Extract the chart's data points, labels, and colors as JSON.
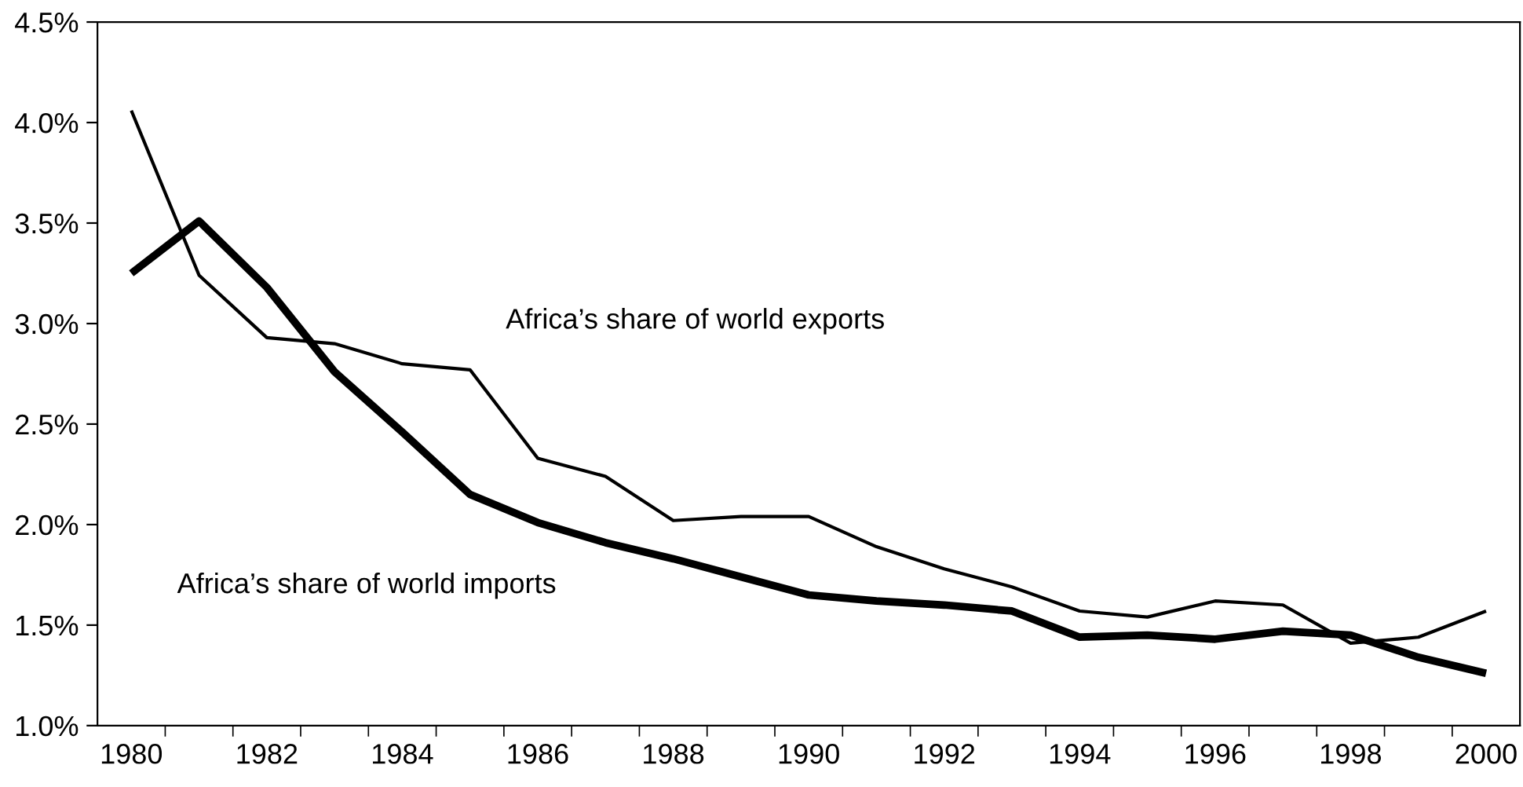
{
  "chart_data": {
    "type": "line",
    "categories": [
      "1980",
      null,
      "1982",
      null,
      "1984",
      null,
      "1986",
      null,
      "1988",
      null,
      "1990",
      null,
      "1992",
      null,
      "1994",
      null,
      "1996",
      null,
      "1998",
      null,
      "2000"
    ],
    "series": [
      {
        "name": "Africa’s share of world exports",
        "color": "#000000",
        "values": [
          4.06,
          3.24,
          2.93,
          2.9,
          2.8,
          2.77,
          2.33,
          2.24,
          2.02,
          2.04,
          2.04,
          1.89,
          1.78,
          1.69,
          1.57,
          1.54,
          1.62,
          1.6,
          1.41,
          1.44,
          1.57
        ]
      },
      {
        "name": "Africa’s share of world imports",
        "color": "#000000",
        "values": [
          3.25,
          3.51,
          3.18,
          2.76,
          2.46,
          2.15,
          2.01,
          1.91,
          1.83,
          1.74,
          1.65,
          1.62,
          1.6,
          1.57,
          1.44,
          1.45,
          1.43,
          1.47,
          1.45,
          1.34,
          1.26
        ]
      }
    ],
    "ylim": [
      1.0,
      4.5
    ],
    "yticks": [
      {
        "value": 1.0,
        "label": "1.0%"
      },
      {
        "value": 1.5,
        "label": "1.5%"
      },
      {
        "value": 2.0,
        "label": "2.0%"
      },
      {
        "value": 2.5,
        "label": "2.5%"
      },
      {
        "value": 3.0,
        "label": "3.0%"
      },
      {
        "value": 3.5,
        "label": "3.5%"
      },
      {
        "value": 4.0,
        "label": "4.0%"
      },
      {
        "value": 4.5,
        "label": "4.5%"
      }
    ],
    "line_style": "solid",
    "marker": "none",
    "grid": false,
    "legend": false
  }
}
